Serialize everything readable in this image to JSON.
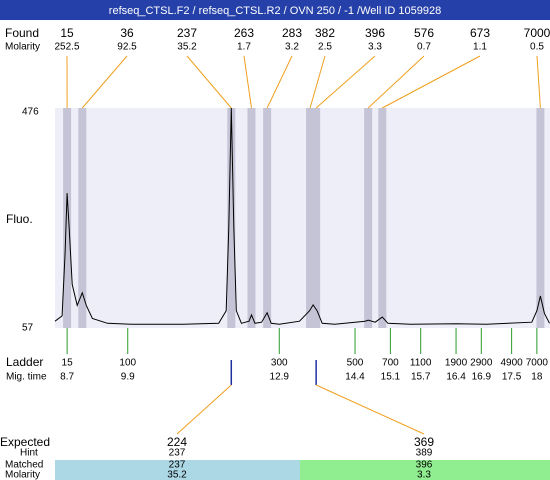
{
  "title": "refseq_CTSL.F2 / refseq_CTSL.R2 / OVN 250 / -1 /Well ID 1059928",
  "found": {
    "label": "Found",
    "molarity_label": "Molarity",
    "peaks": [
      {
        "size": 15,
        "molarity": 252.5,
        "time": 8.7
      },
      {
        "size": 36,
        "molarity": 92.5,
        "time": 9.0
      },
      {
        "size": 237,
        "molarity": 35.2,
        "time": 11.95
      },
      {
        "size": 263,
        "molarity": 1.7,
        "time": 12.35
      },
      {
        "size": 283,
        "molarity": 3.2,
        "time": 12.66
      },
      {
        "size": 382,
        "molarity": 2.5,
        "time": 13.51
      },
      {
        "size": 396,
        "molarity": 3.3,
        "time": 13.63
      },
      {
        "size": 576,
        "molarity": 0.7,
        "time": 14.66
      },
      {
        "size": 673,
        "molarity": 1.1,
        "time": 14.94
      },
      {
        "size": 7000,
        "molarity": 0.5,
        "time": 18.07
      }
    ]
  },
  "plot": {
    "ylabel": "Fluo.",
    "ylim": [
      57,
      476
    ],
    "xlim": [
      8.46,
      18.26
    ],
    "trace": {
      "time": [
        8.46,
        8.6,
        8.66,
        8.7,
        8.74,
        8.8,
        8.9,
        9.0,
        9.08,
        9.2,
        9.5,
        10,
        11,
        11.7,
        11.85,
        11.9,
        11.95,
        12.0,
        12.05,
        12.15,
        12.3,
        12.35,
        12.42,
        12.55,
        12.66,
        12.74,
        12.9,
        13.3,
        13.5,
        13.57,
        13.65,
        13.75,
        14.0,
        14.4,
        14.6,
        14.66,
        14.8,
        14.94,
        15.05,
        15.5,
        16.4,
        17.0,
        17.9,
        18.0,
        18.07,
        18.15,
        18.25
      ],
      "fluo": [
        70,
        80,
        200,
        314,
        250,
        140,
        100,
        124,
        100,
        75,
        66,
        64,
        64,
        66,
        90,
        250,
        476,
        250,
        90,
        66,
        70,
        82,
        66,
        68,
        86,
        66,
        64,
        70,
        90,
        101,
        90,
        66,
        64,
        68,
        70,
        72,
        68,
        78,
        66,
        64,
        65,
        64,
        68,
        90,
        118,
        85,
        66
      ]
    }
  },
  "ladder": {
    "label": "Ladder",
    "time_label": "Mig. time",
    "sizes": [
      15,
      100,
      300,
      500,
      700,
      1100,
      1900,
      2900,
      4900,
      7000
    ],
    "times": [
      8.7,
      9.9,
      12.9,
      14.4,
      15.1,
      15.7,
      16.4,
      16.9,
      17.5,
      18
    ]
  },
  "expected": {
    "label": "Expected",
    "hint_label": "Hint",
    "matched_label": "Matched",
    "molarity_label": "Molarity",
    "items": [
      {
        "expected": 224,
        "hint": 237,
        "matched": 237,
        "molarity": 35.2,
        "found_index": 2
      },
      {
        "expected": 369,
        "hint": 389,
        "matched": 396,
        "molarity": 3.3,
        "found_index": 6
      }
    ]
  }
}
